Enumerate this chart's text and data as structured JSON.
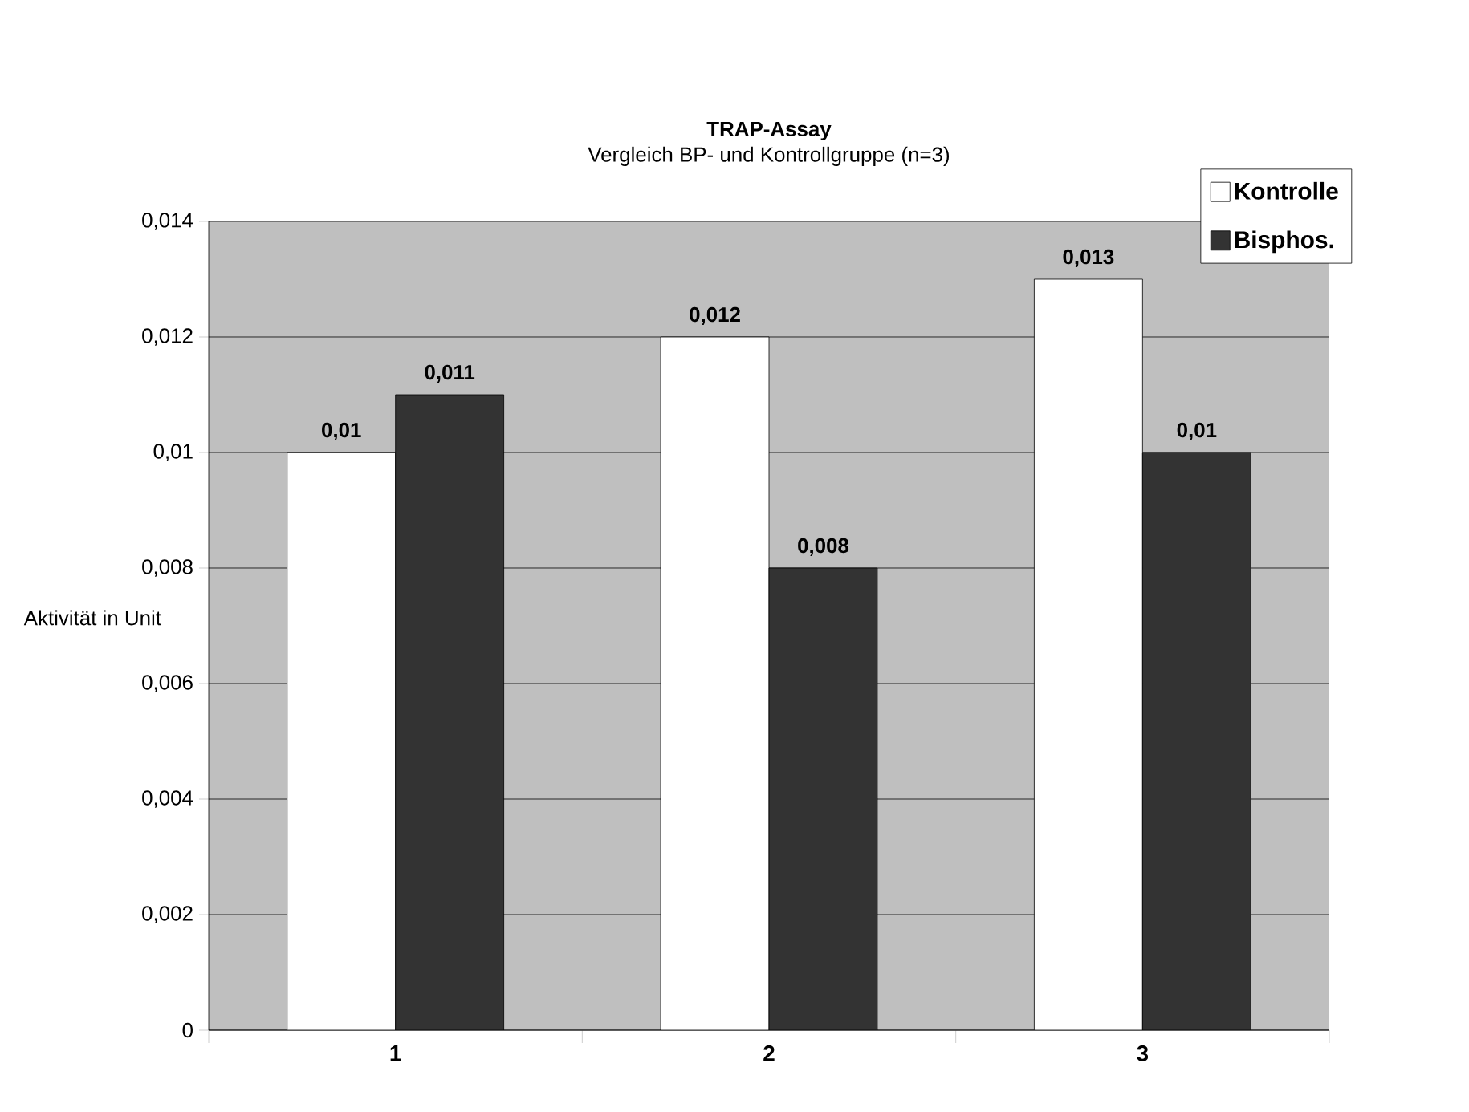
{
  "chart_data": {
    "type": "bar",
    "title": "TRAP-Assay",
    "subtitle": "Vergleich BP- und Kontrollgruppe (n=3)",
    "ylabel": "Aktivität in Unit",
    "categories": [
      "1",
      "2",
      "3"
    ],
    "series": [
      {
        "name": "Kontrolle",
        "color": "#ffffff",
        "values": [
          0.01,
          0.012,
          0.013
        ],
        "value_labels": [
          "0,01",
          "0,012",
          "0,013"
        ]
      },
      {
        "name": "Bisphos.",
        "color": "#333333",
        "values": [
          0.011,
          0.008,
          0.01
        ],
        "value_labels": [
          "0,011",
          "0,008",
          "0,01"
        ]
      }
    ],
    "ylim": [
      0,
      0.014
    ],
    "yticks": [
      0,
      {
        "value": 0.002,
        "label": "0,002"
      },
      {
        "value": 0.004,
        "label": "0,004"
      },
      {
        "value": 0.006,
        "label": "0,006"
      },
      {
        "value": 0.008,
        "label": "0,008"
      },
      {
        "value": 0.01,
        "label": "0,01"
      },
      {
        "value": 0.012,
        "label": "0,012"
      },
      {
        "value": 0.014,
        "label": "0,014"
      }
    ],
    "grid": "y",
    "legend": "top right"
  }
}
